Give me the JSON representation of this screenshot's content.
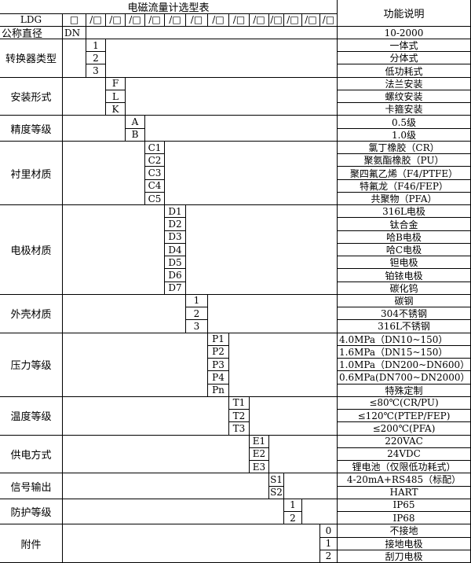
{
  "title": "电磁流量计选型表",
  "function_header": "功能说明",
  "model": "LDG",
  "box": "□",
  "slot": "/□",
  "nominal": {
    "label": "公称直径",
    "code": "DN",
    "desc": "10-2000"
  },
  "groups": [
    {
      "label": "转换器类型",
      "items": [
        [
          "1",
          "一体式"
        ],
        [
          "2",
          "分体式"
        ],
        [
          "3",
          "低功耗式"
        ]
      ]
    },
    {
      "label": "安装形式",
      "items": [
        [
          "F",
          "法兰安装"
        ],
        [
          "L",
          "螺纹安装"
        ],
        [
          "K",
          "卡箍安装"
        ]
      ]
    },
    {
      "label": "精度等级",
      "items": [
        [
          "A",
          "0.5级"
        ],
        [
          "B",
          "1.0级"
        ]
      ]
    },
    {
      "label": "衬里材质",
      "items": [
        [
          "C1",
          "氯丁橡胶（CR）"
        ],
        [
          "C2",
          "聚氨酯橡胶（PU）"
        ],
        [
          "C3",
          "聚四氟乙烯（F4/PTFE）"
        ],
        [
          "C4",
          "特氟龙（F46/FEP）"
        ],
        [
          "C5",
          "共聚物（PFA）"
        ]
      ]
    },
    {
      "label": "电极材质",
      "items": [
        [
          "D1",
          "316L电极"
        ],
        [
          "D2",
          "钛合金"
        ],
        [
          "D3",
          "哈B电极"
        ],
        [
          "D4",
          "哈C电极"
        ],
        [
          "D5",
          "钽电极"
        ],
        [
          "D6",
          "铂铱电极"
        ],
        [
          "D7",
          "碳化钨"
        ]
      ]
    },
    {
      "label": "外壳材质",
      "items": [
        [
          "1",
          "碳钢"
        ],
        [
          "2",
          "304不锈钢"
        ],
        [
          "3",
          "316L不锈钢"
        ]
      ]
    },
    {
      "label": "压力等级",
      "items": [
        [
          "P1",
          "4.0MPa（DN10~150）"
        ],
        [
          "P2",
          "1.6MPa（DN15~150）"
        ],
        [
          "P3",
          "1.0MPa（DN200~DN600）"
        ],
        [
          "P4",
          "0.6MPa(DN700~DN2000）"
        ],
        [
          "Pn",
          "特殊定制"
        ]
      ]
    },
    {
      "label": "温度等级",
      "items": [
        [
          "T1",
          "≤80℃(CR/PU)"
        ],
        [
          "T2",
          "≤120℃(PTEP/FEP)"
        ],
        [
          "T3",
          "≤200℃(PFA)"
        ]
      ]
    },
    {
      "label": "供电方式",
      "items": [
        [
          "E1",
          "220VAC"
        ],
        [
          "E2",
          "24VDC"
        ],
        [
          "E3",
          "锂电池（仅限低功耗式）"
        ]
      ]
    },
    {
      "label": "信号输出",
      "items": [
        [
          "S1",
          "4-20mA+RS485（标配）"
        ],
        [
          "S2",
          "HART"
        ]
      ]
    },
    {
      "label": "防护等级",
      "items": [
        [
          "1",
          "IP65"
        ],
        [
          "2",
          "IP68"
        ]
      ]
    },
    {
      "label": "附件",
      "items": [
        [
          "0",
          "不接地"
        ],
        [
          "1",
          "接地电极"
        ],
        [
          "2",
          "刮刀电极"
        ]
      ]
    }
  ]
}
